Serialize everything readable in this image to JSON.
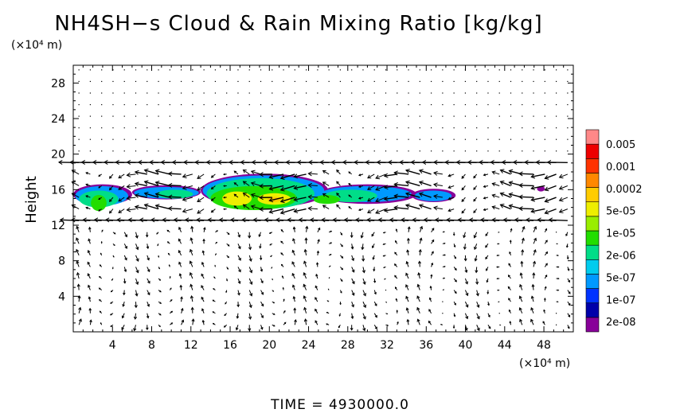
{
  "chart_data": {
    "type": "heatmap",
    "title": "NH4SH−s Cloud & Rain Mixing Ratio [kg/kg]",
    "ylabel": "Height",
    "x_unit": "(×10⁴ m)",
    "y_unit": "(×10⁴ m)",
    "xlim": [
      0,
      51
    ],
    "ylim": [
      0,
      30
    ],
    "x_ticks": [
      4,
      8,
      12,
      16,
      20,
      24,
      28,
      32,
      36,
      40,
      44,
      48
    ],
    "y_ticks": [
      4,
      8,
      12,
      16,
      20,
      24,
      28
    ],
    "grid": false,
    "vector_overlay": true,
    "footer": "TIME  =  4930000.0",
    "colorbar": {
      "placement": "right",
      "labels": [
        "0.005",
        "0.001",
        "0.0002",
        "5e-05",
        "1e-05",
        "2e-06",
        "5e-07",
        "1e-07",
        "2e-08"
      ],
      "colors": [
        "#880099",
        "#0000aa",
        "#0033ff",
        "#0099ff",
        "#00ccee",
        "#00dd88",
        "#22dd00",
        "#99ee00",
        "#eeee00",
        "#ffcc00",
        "#ff8800",
        "#ff3300",
        "#ee0000",
        "#ff8888"
      ]
    },
    "series": [
      {
        "level": "2e-08",
        "color": "#880099",
        "regions": [
          [
            0.0,
            14.3,
            6.0,
            16.6
          ],
          [
            6.0,
            14.9,
            13.0,
            16.5
          ],
          [
            13.0,
            14.0,
            26.0,
            17.8
          ],
          [
            25.0,
            14.4,
            35.0,
            16.6
          ],
          [
            34.5,
            14.6,
            39.0,
            16.1
          ],
          [
            47.3,
            15.8,
            48.1,
            16.4
          ]
        ]
      },
      {
        "level": "5e-07",
        "color": "#0099ff",
        "regions": [
          [
            0.2,
            14.2,
            5.6,
            16.4
          ],
          [
            6.2,
            15.0,
            12.8,
            16.3
          ],
          [
            13.2,
            14.2,
            25.6,
            17.6
          ],
          [
            25.2,
            14.6,
            34.5,
            16.4
          ],
          [
            34.8,
            14.7,
            38.6,
            15.9
          ]
        ]
      },
      {
        "level": "2e-06",
        "color": "#00dd88",
        "regions": [
          [
            0.6,
            14.0,
            4.6,
            15.9
          ],
          [
            8.5,
            15.0,
            12.2,
            16.0
          ],
          [
            13.6,
            13.8,
            24.6,
            17.3
          ],
          [
            25.6,
            14.6,
            31.0,
            16.0
          ]
        ]
      },
      {
        "level": "1e-05",
        "color": "#22dd00",
        "regions": [
          [
            1.8,
            13.6,
            3.4,
            15.4
          ],
          [
            14.0,
            13.7,
            22.8,
            16.4
          ],
          [
            24.5,
            14.4,
            27.2,
            15.4
          ]
        ]
      },
      {
        "level": "5e-05",
        "color": "#eeee00",
        "regions": [
          [
            15.2,
            14.2,
            18.2,
            15.8
          ],
          [
            18.8,
            14.3,
            22.2,
            15.6
          ]
        ]
      },
      {
        "level": "0.0002",
        "color": "#ffcc00",
        "regions": [
          [
            19.8,
            14.6,
            21.2,
            15.2
          ]
        ]
      }
    ]
  }
}
